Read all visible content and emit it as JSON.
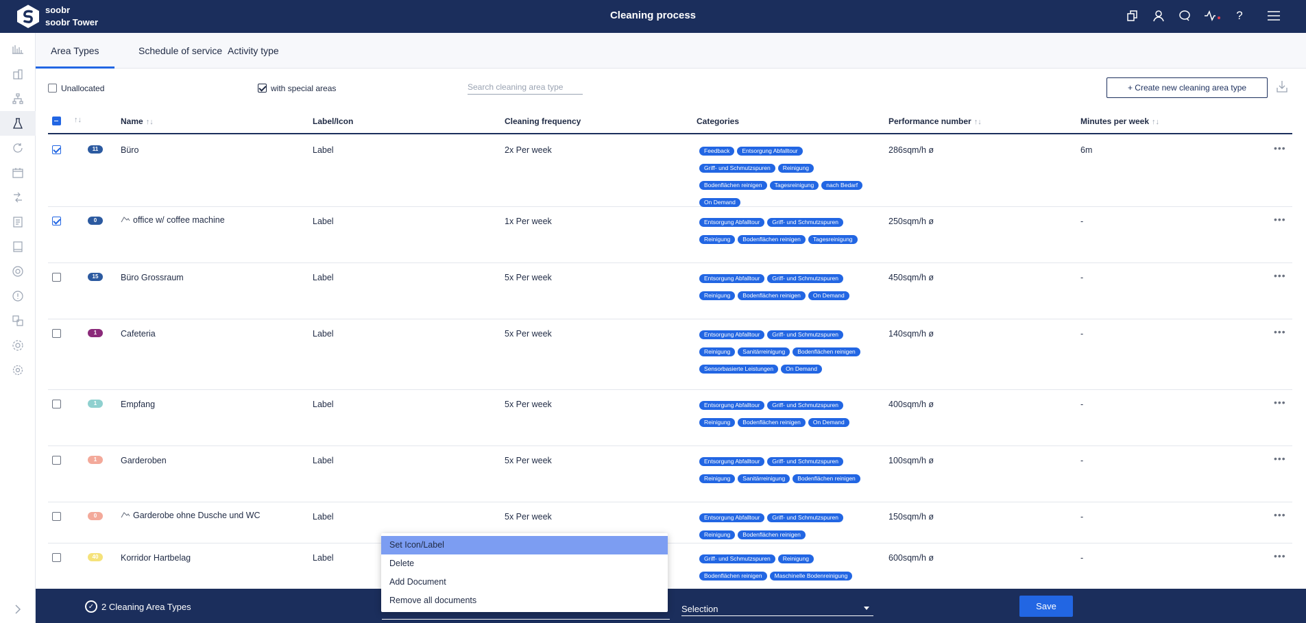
{
  "app": {
    "name": "soobr",
    "subtitle": "soobr Tower",
    "title": "Cleaning process"
  },
  "tabs": [
    {
      "label": "Area Types",
      "active": true
    },
    {
      "label": "Schedule of service",
      "active": false
    },
    {
      "label": "Activity type",
      "active": false
    }
  ],
  "filters": {
    "unallocated_label": "Unallocated",
    "unallocated_checked": false,
    "special_label": "with special areas",
    "special_checked": true,
    "search_placeholder": "Search cleaning area type",
    "create_label": "+ Create new cleaning area type"
  },
  "table": {
    "headers": [
      "Name",
      "Label/Icon",
      "Cleaning frequency",
      "Categories",
      "Performance number",
      "Minutes per week"
    ],
    "rows": [
      {
        "checked": true,
        "count": "11",
        "badge_color": "#2c5aa0",
        "name": "Büro",
        "has_icon": false,
        "label": "Label",
        "frequency": "2x Per week",
        "categories": [
          "Feedback",
          "Entsorgung Abfalltour",
          "Griff- und Schmutzspuren",
          "Reinigung",
          "Bodenflächen reinigen",
          "Tagesreinigung",
          "nach Bedarf",
          "On Demand"
        ],
        "performance": "286sqm/h ø",
        "minutes": "6m"
      },
      {
        "checked": true,
        "count": "0",
        "badge_color": "#2c5aa0",
        "name": "office w/ coffee machine",
        "has_icon": true,
        "label": "Label",
        "frequency": "1x Per week",
        "categories": [
          "Entsorgung Abfalltour",
          "Griff- und Schmutzspuren",
          "Reinigung",
          "Bodenflächen reinigen",
          "Tagesreinigung"
        ],
        "performance": "250sqm/h ø",
        "minutes": "-"
      },
      {
        "checked": false,
        "count": "15",
        "badge_color": "#2c5aa0",
        "name": "Büro Grossraum",
        "has_icon": false,
        "label": "Label",
        "frequency": "5x Per week",
        "categories": [
          "Entsorgung Abfalltour",
          "Griff- und Schmutzspuren",
          "Reinigung",
          "Bodenflächen reinigen",
          "On Demand"
        ],
        "performance": "450sqm/h ø",
        "minutes": "-"
      },
      {
        "checked": false,
        "count": "1",
        "badge_color": "#8b2a7a",
        "name": "Cafeteria",
        "has_icon": false,
        "label": "Label",
        "frequency": "5x Per week",
        "categories": [
          "Entsorgung Abfalltour",
          "Griff- und Schmutzspuren",
          "Reinigung",
          "Sanitärreinigung",
          "Bodenflächen reinigen",
          "Sensorbasierte Leistungen",
          "On Demand"
        ],
        "performance": "140sqm/h ø",
        "minutes": "-"
      },
      {
        "checked": false,
        "count": "1",
        "badge_color": "#8fd0cf",
        "name": "Empfang",
        "has_icon": false,
        "label": "Label",
        "frequency": "5x Per week",
        "categories": [
          "Entsorgung Abfalltour",
          "Griff- und Schmutzspuren",
          "Reinigung",
          "Bodenflächen reinigen",
          "On Demand"
        ],
        "performance": "400sqm/h ø",
        "minutes": "-"
      },
      {
        "checked": false,
        "count": "1",
        "badge_color": "#f3a99a",
        "name": "Garderoben",
        "has_icon": false,
        "label": "Label",
        "frequency": "5x Per week",
        "categories": [
          "Entsorgung Abfalltour",
          "Griff- und Schmutzspuren",
          "Reinigung",
          "Sanitärreinigung",
          "Bodenflächen reinigen"
        ],
        "performance": "100sqm/h ø",
        "minutes": "-"
      },
      {
        "checked": false,
        "count": "0",
        "badge_color": "#f3a99a",
        "name": "Garderobe ohne Dusche und WC",
        "has_icon": true,
        "label": "Label",
        "frequency": "5x Per week",
        "categories": [
          "Entsorgung Abfalltour",
          "Griff- und Schmutzspuren",
          "Reinigung",
          "Bodenflächen reinigen"
        ],
        "performance": "150sqm/h ø",
        "minutes": "-"
      },
      {
        "checked": false,
        "count": "40",
        "badge_color": "#f5e27a",
        "name": "Korridor Hartbelag",
        "has_icon": false,
        "label": "Label",
        "frequency": "",
        "categories": [
          "Griff- und Schmutzspuren",
          "Reinigung",
          "Bodenflächen reinigen",
          "Maschinelle Bodenreinigung"
        ],
        "performance": "600sqm/h ø",
        "minutes": "-"
      }
    ]
  },
  "bottom": {
    "selection_count": "2 Cleaning Area Types",
    "selection_dropdown": "Selection",
    "save_label": "Save"
  },
  "menu": {
    "items": [
      "Set Icon/Label",
      "Delete",
      "Add Document",
      "Remove all documents"
    ],
    "highlighted": 0
  },
  "icons": {
    "top": [
      "copy-icon",
      "user-icon",
      "chat-icon",
      "activity-icon",
      "help-icon",
      "menu-icon"
    ],
    "sidebar": [
      "bar-chart-icon",
      "building-icon",
      "hierarchy-icon",
      "flask-icon",
      "refresh-icon",
      "calendar-icon",
      "swap-icon",
      "document-icon",
      "book-icon",
      "gauge-icon",
      "alert-icon",
      "translate-icon",
      "users-gear-icon",
      "settings-icon"
    ]
  },
  "colors": {
    "primary": "#1b2e5c",
    "accent": "#2266e3",
    "menu_highlight": "#7c9df2"
  }
}
